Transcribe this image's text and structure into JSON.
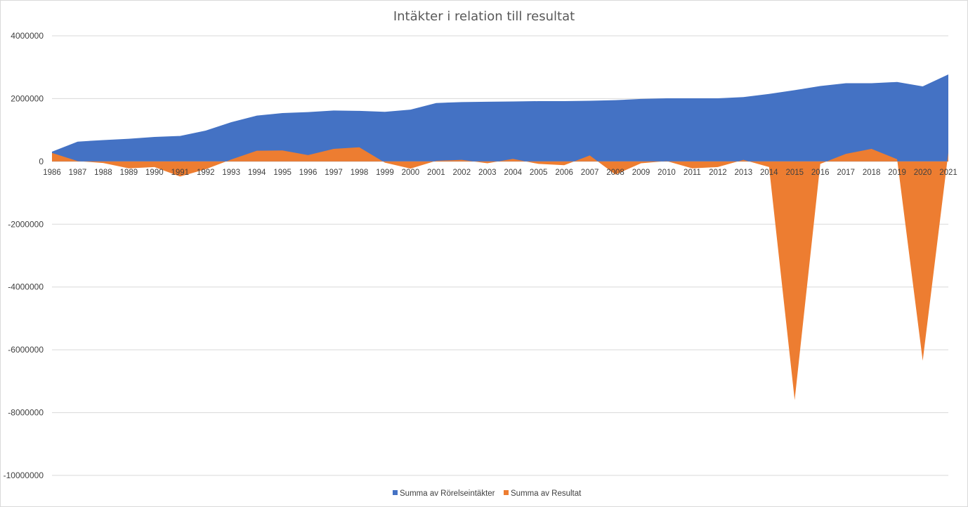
{
  "chart_data": {
    "type": "area",
    "title": "Intäkter i relation till resultat",
    "xlabel": "",
    "ylabel": "",
    "ylim": [
      -10000000,
      4000000
    ],
    "yticks": [
      4000000,
      2000000,
      0,
      -2000000,
      -4000000,
      -6000000,
      -8000000,
      -10000000
    ],
    "ytick_labels": [
      "4000000",
      "2000000",
      "0",
      "-2000000",
      "-4000000",
      "-6000000",
      "-8000000",
      "-10000000"
    ],
    "grid": true,
    "legend_position": "bottom",
    "categories": [
      "1986",
      "1987",
      "1988",
      "1989",
      "1990",
      "1991",
      "1992",
      "1993",
      "1994",
      "1995",
      "1996",
      "1997",
      "1998",
      "1999",
      "2000",
      "2001",
      "2002",
      "2003",
      "2004",
      "2005",
      "2006",
      "2007",
      "2008",
      "2009",
      "2010",
      "2011",
      "2012",
      "2013",
      "2014",
      "2015",
      "2016",
      "2017",
      "2018",
      "2019",
      "2020",
      "2021"
    ],
    "series": [
      {
        "name": "Summa av Rörelseintäkter",
        "color": "#4472c4",
        "values": [
          310000,
          630000,
          680000,
          720000,
          780000,
          810000,
          980000,
          1250000,
          1460000,
          1540000,
          1570000,
          1620000,
          1610000,
          1580000,
          1650000,
          1860000,
          1890000,
          1900000,
          1910000,
          1920000,
          1920000,
          1930000,
          1950000,
          1990000,
          2010000,
          2010000,
          2010000,
          2050000,
          2150000,
          2270000,
          2400000,
          2490000,
          2490000,
          2530000,
          2390000,
          2770000
        ]
      },
      {
        "name": "Summa av  Resultat",
        "color": "#ed7d31",
        "values": [
          270000,
          10000,
          -50000,
          -220000,
          -180000,
          -480000,
          -250000,
          60000,
          340000,
          350000,
          200000,
          400000,
          450000,
          -40000,
          -230000,
          20000,
          50000,
          -60000,
          80000,
          -80000,
          -120000,
          190000,
          -420000,
          -60000,
          10000,
          -220000,
          -180000,
          50000,
          -180000,
          -7600000,
          -80000,
          240000,
          400000,
          70000,
          -6350000,
          280000
        ]
      }
    ]
  }
}
